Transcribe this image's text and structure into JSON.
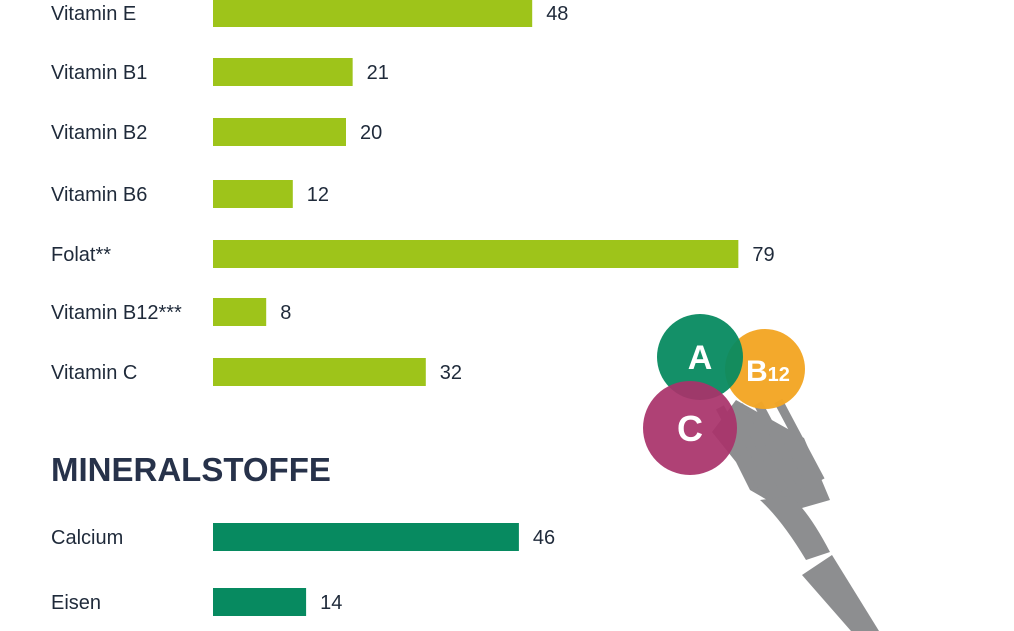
{
  "chart_data": [
    {
      "type": "bar",
      "orientation": "horizontal",
      "color": "#9ec41a",
      "categories": [
        "Vitamin E",
        "Vitamin B1",
        "Vitamin B2",
        "Vitamin B6",
        "Folat**",
        "Vitamin B12***",
        "Vitamin C"
      ],
      "values": [
        48,
        21,
        20,
        12,
        79,
        8,
        32
      ],
      "data_labels": [
        "48",
        "21",
        "20",
        "12",
        "79",
        "8",
        "32"
      ]
    },
    {
      "type": "bar",
      "orientation": "horizontal",
      "title": "MINERALSTOFFE",
      "color": "#078a60",
      "categories": [
        "Calcium",
        "Eisen"
      ],
      "values": [
        46,
        14
      ],
      "data_labels": [
        "46",
        "14"
      ]
    }
  ],
  "illustration": {
    "icon": "fork-with-vitamin-balls-icon",
    "balls": [
      {
        "letter": "A",
        "color": "#078a60"
      },
      {
        "letter": "B",
        "subscript": "12",
        "color": "#f2a623"
      },
      {
        "letter": "C",
        "color": "#a9336b"
      }
    ],
    "fork_color": "#8d8e90"
  }
}
